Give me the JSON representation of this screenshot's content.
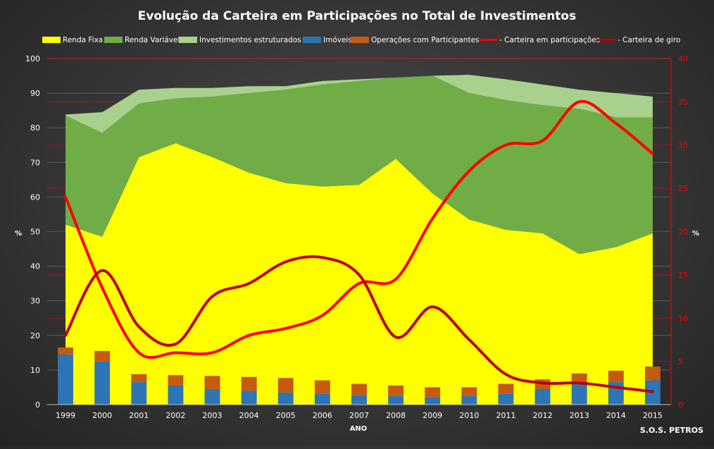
{
  "chart_data": {
    "type": "area",
    "title": "Evolução  da Carteira  em Participações  no  Total  de  Investimentos",
    "xlabel": "ANO",
    "ylabel_left": "%",
    "ylabel_right": "%",
    "watermark": "S.O.S. PETROS",
    "x": [
      "1999",
      "2000",
      "2001",
      "2002",
      "2003",
      "2004",
      "2005",
      "2006",
      "2007",
      "2008",
      "2009",
      "2010",
      "2011",
      "2012",
      "2013",
      "2014",
      "2015"
    ],
    "ylim_left": [
      0,
      100
    ],
    "yticks_left": [
      "0",
      "10",
      "20",
      "30",
      "40",
      "50",
      "60",
      "70",
      "80",
      "90",
      "100"
    ],
    "ylim_right": [
      0,
      40
    ],
    "yticks_right": [
      "0",
      "5",
      "10",
      "15",
      "20",
      "25",
      "30",
      "35",
      "40"
    ],
    "grid": true,
    "legend_position": "top",
    "stacked_area_series": [
      {
        "name": "Renda Fixa",
        "color": "#ffff00",
        "values": [
          52,
          48.5,
          71.5,
          75.5,
          71.5,
          67,
          64,
          63,
          63.5,
          71,
          61,
          53.5,
          50.5,
          49.5,
          43.5,
          45.5,
          49.5
        ]
      },
      {
        "name": "Renda Variável",
        "color": "#70ad47",
        "values": [
          31.5,
          30,
          15.5,
          13,
          17.5,
          23,
          27,
          29.5,
          30,
          23.5,
          34,
          36.5,
          37.5,
          37,
          42,
          37.5,
          33.5
        ]
      },
      {
        "name": "Investimentos estruturados",
        "color": "#a9d18e",
        "values": [
          0.3,
          6,
          4,
          3,
          2.5,
          2,
          1,
          1,
          0.5,
          0,
          0,
          5.3,
          6,
          6,
          5.5,
          7,
          6
        ]
      }
    ],
    "stacked_bar_series": [
      {
        "name": "Imóveis",
        "color": "#2e75b6",
        "values": [
          14.5,
          12.5,
          6.5,
          5.5,
          4.5,
          4,
          3.5,
          3.2,
          2.8,
          2.5,
          2.2,
          2.5,
          3.2,
          4.5,
          6,
          6.5,
          7
        ]
      },
      {
        "name": "Operações com Participantes",
        "color": "#c55a11",
        "values": [
          2,
          3,
          2.3,
          3,
          3.8,
          4,
          4.2,
          3.8,
          3.2,
          3,
          2.8,
          2.5,
          2.8,
          2.8,
          3,
          3.3,
          4
        ]
      }
    ],
    "line_series": [
      {
        "name": "- Carteira em participações",
        "color": "#ff0000",
        "axis": "right",
        "values": [
          24,
          13.5,
          6,
          6,
          6,
          8,
          8.8,
          10.3,
          14,
          14.5,
          21.5,
          27,
          30,
          30.5,
          35,
          32.5,
          29
        ]
      },
      {
        "name": "- Carteira de giro",
        "color": "#c00000",
        "axis": "right",
        "values": [
          8,
          15.5,
          9,
          7,
          12.5,
          14,
          16.5,
          17,
          15,
          7.8,
          11.3,
          7.5,
          3.5,
          2.5,
          2.5,
          2,
          1.5
        ]
      }
    ]
  }
}
